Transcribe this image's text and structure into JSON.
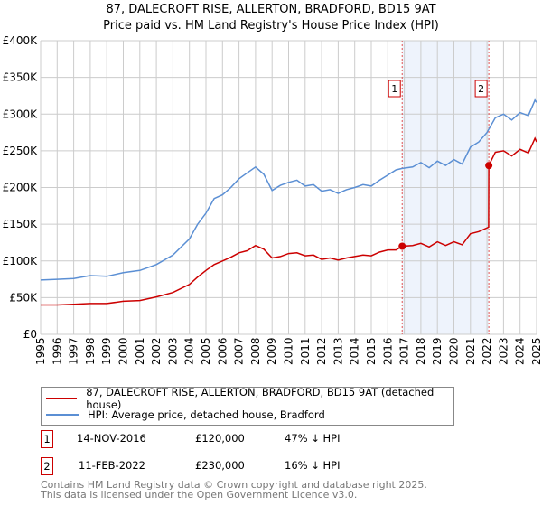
{
  "chart_data": {
    "type": "line",
    "title": "87, DALECROFT RISE, ALLERTON, BRADFORD, BD15 9AT",
    "subtitle": "Price paid vs. HM Land Registry's House Price Index (HPI)",
    "xlim": [
      1995,
      2025
    ],
    "ylim": [
      0,
      400000
    ],
    "yticks": [
      {
        "v": 0,
        "label": "£0"
      },
      {
        "v": 50000,
        "label": "£50K"
      },
      {
        "v": 100000,
        "label": "£100K"
      },
      {
        "v": 150000,
        "label": "£150K"
      },
      {
        "v": 200000,
        "label": "£200K"
      },
      {
        "v": 250000,
        "label": "£250K"
      },
      {
        "v": 300000,
        "label": "£300K"
      },
      {
        "v": 350000,
        "label": "£350K"
      },
      {
        "v": 400000,
        "label": "£400K"
      }
    ],
    "xticks": [
      "1995",
      "1996",
      "1997",
      "1998",
      "1999",
      "2000",
      "2001",
      "2002",
      "2003",
      "2004",
      "2005",
      "2006",
      "2007",
      "2008",
      "2009",
      "2010",
      "2011",
      "2012",
      "2013",
      "2014",
      "2015",
      "2016",
      "2017",
      "2018",
      "2019",
      "2020",
      "2021",
      "2022",
      "2023",
      "2024",
      "2025"
    ],
    "grid": true,
    "series": [
      {
        "name": "87, DALECROFT RISE, ALLERTON, BRADFORD, BD15 9AT (detached house)",
        "color": "#cc0000",
        "x": [
          1995,
          1996,
          1997,
          1998,
          1999,
          2000,
          2001,
          2002,
          2003,
          2004,
          2004.5,
          2005,
          2005.5,
          2006,
          2006.5,
          2007,
          2007.5,
          2008,
          2008.5,
          2009,
          2009.5,
          2010,
          2010.5,
          2011,
          2011.5,
          2012,
          2012.5,
          2013,
          2013.5,
          2014,
          2014.5,
          2015,
          2015.5,
          2016,
          2016.5,
          2016.87,
          2017.5,
          2018,
          2018.5,
          2019,
          2019.5,
          2020,
          2020.5,
          2021,
          2021.5,
          2022.1,
          2022.11,
          2022.5,
          2023,
          2023.5,
          2024,
          2024.5,
          2024.9,
          2025
        ],
        "y": [
          40000,
          40000,
          41000,
          42000,
          42000,
          45000,
          46000,
          51000,
          57000,
          68000,
          78000,
          87000,
          95000,
          100000,
          105000,
          111000,
          114000,
          121000,
          116000,
          104000,
          106000,
          110000,
          111000,
          107000,
          108000,
          102000,
          104000,
          101000,
          104000,
          106000,
          108000,
          107000,
          112000,
          115000,
          115000,
          120000,
          121000,
          124000,
          119000,
          126000,
          121000,
          126000,
          122000,
          137000,
          140000,
          146000,
          230000,
          248000,
          250000,
          243000,
          252000,
          247000,
          267000,
          262000
        ]
      },
      {
        "name": "HPI: Average price, detached house, Bradford",
        "color": "#5b8fd4",
        "x": [
          1995,
          1996,
          1997,
          1998,
          1999,
          2000,
          2001,
          2002,
          2003,
          2004,
          2004.5,
          2005,
          2005.5,
          2006,
          2006.5,
          2007,
          2007.5,
          2008,
          2008.5,
          2009,
          2009.5,
          2010,
          2010.5,
          2011,
          2011.5,
          2012,
          2012.5,
          2013,
          2013.5,
          2014,
          2014.5,
          2015,
          2015.5,
          2016,
          2016.5,
          2016.87,
          2017.5,
          2018,
          2018.5,
          2019,
          2019.5,
          2020,
          2020.5,
          2021,
          2021.5,
          2022,
          2022.5,
          2023,
          2023.5,
          2024,
          2024.5,
          2024.9,
          2025
        ],
        "y": [
          74000,
          75000,
          76000,
          80000,
          79000,
          84000,
          87000,
          95000,
          108000,
          130000,
          150000,
          165000,
          185000,
          190000,
          200000,
          212000,
          220000,
          228000,
          218000,
          196000,
          203000,
          207000,
          210000,
          202000,
          204000,
          195000,
          197000,
          192000,
          197000,
          200000,
          204000,
          202000,
          210000,
          217000,
          224000,
          226000,
          228000,
          234000,
          227000,
          236000,
          230000,
          238000,
          232000,
          255000,
          262000,
          275000,
          295000,
          300000,
          292000,
          302000,
          298000,
          319000,
          316000
        ]
      }
    ],
    "shaded_range": [
      2016.87,
      2022.11
    ],
    "annotations": [
      {
        "label": "1",
        "x": 2016.87,
        "y": 120000
      },
      {
        "label": "2",
        "x": 2022.11,
        "y": 230000
      }
    ]
  },
  "legend": {
    "items": [
      "87, DALECROFT RISE, ALLERTON, BRADFORD, BD15 9AT (detached house)",
      "HPI: Average price, detached house, Bradford"
    ]
  },
  "transactions": [
    {
      "num": "1",
      "date": "14-NOV-2016",
      "price": "£120,000",
      "hpi": "47% ↓ HPI"
    },
    {
      "num": "2",
      "date": "11-FEB-2022",
      "price": "£230,000",
      "hpi": "16% ↓ HPI"
    }
  ],
  "footer": {
    "line1": "Contains HM Land Registry data © Crown copyright and database right 2025.",
    "line2": "This data is licensed under the Open Government Licence v3.0."
  }
}
